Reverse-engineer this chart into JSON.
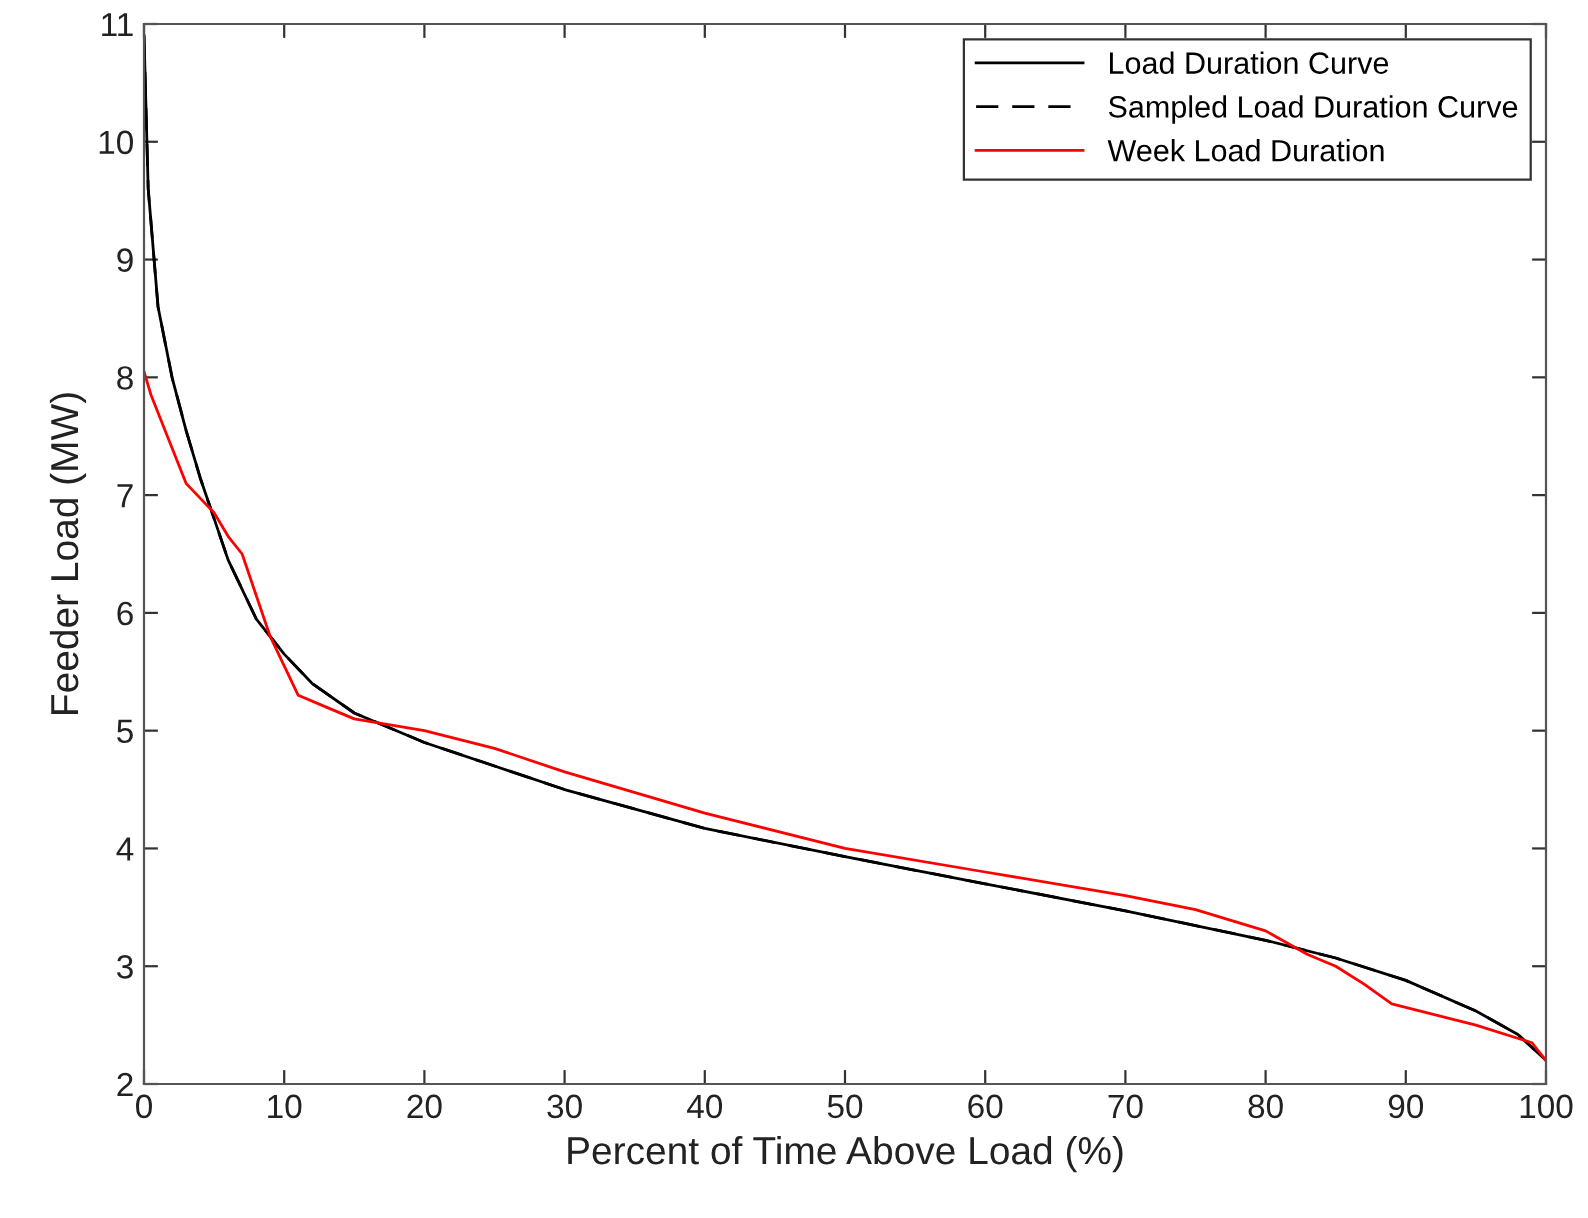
{
  "chart_data": {
    "type": "line",
    "xlabel": "Percent of Time Above Load (%)",
    "ylabel": "Feeder Load (MW)",
    "xlim": [
      0,
      100
    ],
    "ylim": [
      2,
      11
    ],
    "xticks": [
      0,
      10,
      20,
      30,
      40,
      50,
      60,
      70,
      80,
      90,
      100
    ],
    "yticks": [
      2,
      3,
      4,
      5,
      6,
      7,
      8,
      9,
      10,
      11
    ],
    "grid": false,
    "legend": "top right",
    "series": [
      {
        "name": "Load Duration Curve",
        "color": "#000000",
        "line_style": "solid",
        "x": [
          0,
          0.3,
          1,
          2,
          3,
          4,
          5,
          6,
          7,
          8,
          10,
          12,
          15,
          20,
          25,
          30,
          40,
          50,
          60,
          70,
          80,
          85,
          90,
          95,
          98,
          100
        ],
        "values": [
          10.9,
          9.6,
          8.6,
          8.0,
          7.55,
          7.15,
          6.8,
          6.45,
          6.2,
          5.95,
          5.65,
          5.4,
          5.15,
          4.9,
          4.7,
          4.5,
          4.17,
          3.93,
          3.7,
          3.47,
          3.22,
          3.07,
          2.88,
          2.62,
          2.42,
          2.2
        ]
      },
      {
        "name": "Sampled Load Duration Curve",
        "color": "#000000",
        "line_style": "dashed",
        "x": [
          0,
          0.3,
          1,
          2,
          3,
          4,
          5,
          6,
          7,
          8,
          10,
          12,
          15,
          20,
          25,
          30,
          40,
          50,
          60,
          70,
          80,
          85,
          90,
          95,
          98,
          100
        ],
        "values": [
          10.9,
          9.6,
          8.6,
          8.0,
          7.55,
          7.15,
          6.8,
          6.45,
          6.2,
          5.95,
          5.65,
          5.4,
          5.15,
          4.9,
          4.7,
          4.5,
          4.17,
          3.93,
          3.7,
          3.47,
          3.22,
          3.07,
          2.88,
          2.62,
          2.42,
          2.2
        ]
      },
      {
        "name": "Week Load Duration",
        "color": "#ff0000",
        "line_style": "solid",
        "x": [
          0,
          0.5,
          2,
          3,
          5,
          6,
          7,
          8,
          9,
          10,
          11,
          13,
          15,
          20,
          25,
          30,
          40,
          50,
          60,
          70,
          75,
          80,
          83,
          85,
          87,
          89,
          95,
          99,
          100
        ],
        "values": [
          8.05,
          7.85,
          7.4,
          7.1,
          6.85,
          6.65,
          6.5,
          6.15,
          5.8,
          5.55,
          5.3,
          5.2,
          5.1,
          5.0,
          4.85,
          4.65,
          4.3,
          4.0,
          3.8,
          3.6,
          3.48,
          3.3,
          3.1,
          3.0,
          2.85,
          2.68,
          2.5,
          2.35,
          2.2
        ]
      }
    ]
  }
}
